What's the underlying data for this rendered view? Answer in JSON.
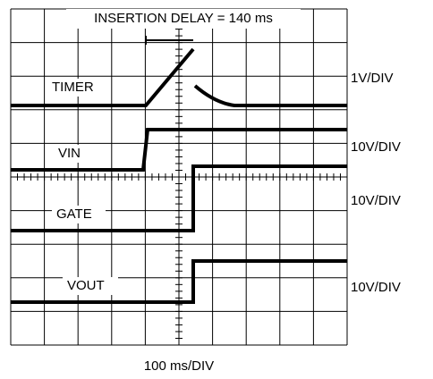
{
  "header": {
    "title": "INSERTION DELAY = 140 ms"
  },
  "traces": [
    {
      "label": "TIMER",
      "scale": "1V/DIV"
    },
    {
      "label": "VIN",
      "scale": "10V/DIV"
    },
    {
      "label": "GATE",
      "scale": "10V/DIV"
    },
    {
      "label": "VOUT",
      "scale": "10V/DIV"
    }
  ],
  "footer": {
    "timebase": "100 ms/DIV"
  }
}
